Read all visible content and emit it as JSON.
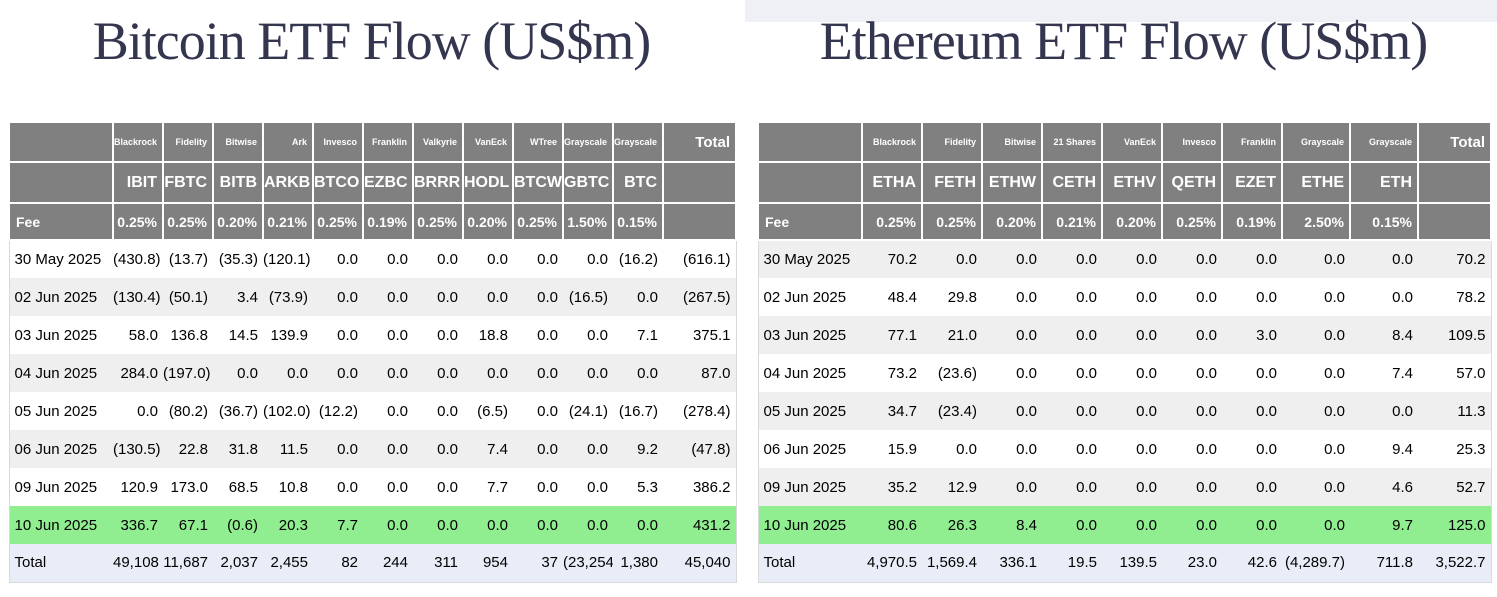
{
  "colors": {
    "header_bg": "#808080",
    "header_text": "#ffffff",
    "negative_text": "#ff0000",
    "highlight_row_bg": "#90ee90",
    "total_row_bg": "#e9edf8",
    "zebra_row_bg": "#efefef",
    "title_text": "#343650"
  },
  "chart_data": [
    {
      "type": "table",
      "title": "Bitcoin ETF Flow (US$m)",
      "fee_row_label": "Fee",
      "total_column_label": "Total",
      "funds": [
        {
          "institution": "Blackrock",
          "ticker": "IBIT",
          "fee": "0.25%"
        },
        {
          "institution": "Fidelity",
          "ticker": "FBTC",
          "fee": "0.25%"
        },
        {
          "institution": "Bitwise",
          "ticker": "BITB",
          "fee": "0.20%"
        },
        {
          "institution": "Ark",
          "ticker": "ARKB",
          "fee": "0.21%"
        },
        {
          "institution": "Invesco",
          "ticker": "BTCO",
          "fee": "0.25%"
        },
        {
          "institution": "Franklin",
          "ticker": "EZBC",
          "fee": "0.19%"
        },
        {
          "institution": "Valkyrie",
          "ticker": "BRRR",
          "fee": "0.25%"
        },
        {
          "institution": "VanEck",
          "ticker": "HODL",
          "fee": "0.20%"
        },
        {
          "institution": "WTree",
          "ticker": "BTCW",
          "fee": "0.25%"
        },
        {
          "institution": "Grayscale",
          "ticker": "GBTC",
          "fee": "1.50%"
        },
        {
          "institution": "Grayscale",
          "ticker": "BTC",
          "fee": "0.15%"
        }
      ],
      "rows": [
        {
          "date": "30 May 2025",
          "values": [
            "(430.8)",
            "(13.7)",
            "(35.3)",
            "(120.1)",
            "0.0",
            "0.0",
            "0.0",
            "0.0",
            "0.0",
            "0.0",
            "(16.2)"
          ],
          "total": "(616.1)",
          "highlight": false
        },
        {
          "date": "02 Jun 2025",
          "values": [
            "(130.4)",
            "(50.1)",
            "3.4",
            "(73.9)",
            "0.0",
            "0.0",
            "0.0",
            "0.0",
            "0.0",
            "(16.5)",
            "0.0"
          ],
          "total": "(267.5)",
          "highlight": false
        },
        {
          "date": "03 Jun 2025",
          "values": [
            "58.0",
            "136.8",
            "14.5",
            "139.9",
            "0.0",
            "0.0",
            "0.0",
            "18.8",
            "0.0",
            "0.0",
            "7.1"
          ],
          "total": "375.1",
          "highlight": false
        },
        {
          "date": "04 Jun 2025",
          "values": [
            "284.0",
            "(197.0)",
            "0.0",
            "0.0",
            "0.0",
            "0.0",
            "0.0",
            "0.0",
            "0.0",
            "0.0",
            "0.0"
          ],
          "total": "87.0",
          "highlight": false
        },
        {
          "date": "05 Jun 2025",
          "values": [
            "0.0",
            "(80.2)",
            "(36.7)",
            "(102.0)",
            "(12.2)",
            "0.0",
            "0.0",
            "(6.5)",
            "0.0",
            "(24.1)",
            "(16.7)"
          ],
          "total": "(278.4)",
          "highlight": false
        },
        {
          "date": "06 Jun 2025",
          "values": [
            "(130.5)",
            "22.8",
            "31.8",
            "11.5",
            "0.0",
            "0.0",
            "0.0",
            "7.4",
            "0.0",
            "0.0",
            "9.2"
          ],
          "total": "(47.8)",
          "highlight": false
        },
        {
          "date": "09 Jun 2025",
          "values": [
            "120.9",
            "173.0",
            "68.5",
            "10.8",
            "0.0",
            "0.0",
            "0.0",
            "7.7",
            "0.0",
            "0.0",
            "5.3"
          ],
          "total": "386.2",
          "highlight": false
        },
        {
          "date": "10 Jun 2025",
          "values": [
            "336.7",
            "67.1",
            "(0.6)",
            "20.3",
            "7.7",
            "0.0",
            "0.0",
            "0.0",
            "0.0",
            "0.0",
            "0.0"
          ],
          "total": "431.2",
          "highlight": true
        }
      ],
      "total_row": {
        "label": "Total",
        "values": [
          "49,108",
          "11,687",
          "2,037",
          "2,455",
          "82",
          "244",
          "311",
          "954",
          "37",
          "(23,254)",
          "1,380"
        ],
        "total": "45,040"
      }
    },
    {
      "type": "table",
      "title": "Ethereum ETF Flow (US$m)",
      "fee_row_label": "Fee",
      "total_column_label": "Total",
      "funds": [
        {
          "institution": "Blackrock",
          "ticker": "ETHA",
          "fee": "0.25%"
        },
        {
          "institution": "Fidelity",
          "ticker": "FETH",
          "fee": "0.25%"
        },
        {
          "institution": "Bitwise",
          "ticker": "ETHW",
          "fee": "0.20%"
        },
        {
          "institution": "21 Shares",
          "ticker": "CETH",
          "fee": "0.21%"
        },
        {
          "institution": "VanEck",
          "ticker": "ETHV",
          "fee": "0.20%"
        },
        {
          "institution": "Invesco",
          "ticker": "QETH",
          "fee": "0.25%"
        },
        {
          "institution": "Franklin",
          "ticker": "EZET",
          "fee": "0.19%"
        },
        {
          "institution": "Grayscale",
          "ticker": "ETHE",
          "fee": "2.50%"
        },
        {
          "institution": "Grayscale",
          "ticker": "ETH",
          "fee": "0.15%"
        }
      ],
      "rows": [
        {
          "date": "30 May 2025",
          "values": [
            "70.2",
            "0.0",
            "0.0",
            "0.0",
            "0.0",
            "0.0",
            "0.0",
            "0.0",
            "0.0"
          ],
          "total": "70.2",
          "highlight": false
        },
        {
          "date": "02 Jun 2025",
          "values": [
            "48.4",
            "29.8",
            "0.0",
            "0.0",
            "0.0",
            "0.0",
            "0.0",
            "0.0",
            "0.0"
          ],
          "total": "78.2",
          "highlight": false
        },
        {
          "date": "03 Jun 2025",
          "values": [
            "77.1",
            "21.0",
            "0.0",
            "0.0",
            "0.0",
            "0.0",
            "3.0",
            "0.0",
            "8.4"
          ],
          "total": "109.5",
          "highlight": false
        },
        {
          "date": "04 Jun 2025",
          "values": [
            "73.2",
            "(23.6)",
            "0.0",
            "0.0",
            "0.0",
            "0.0",
            "0.0",
            "0.0",
            "7.4"
          ],
          "total": "57.0",
          "highlight": false
        },
        {
          "date": "05 Jun 2025",
          "values": [
            "34.7",
            "(23.4)",
            "0.0",
            "0.0",
            "0.0",
            "0.0",
            "0.0",
            "0.0",
            "0.0"
          ],
          "total": "11.3",
          "highlight": false
        },
        {
          "date": "06 Jun 2025",
          "values": [
            "15.9",
            "0.0",
            "0.0",
            "0.0",
            "0.0",
            "0.0",
            "0.0",
            "0.0",
            "9.4"
          ],
          "total": "25.3",
          "highlight": false
        },
        {
          "date": "09 Jun 2025",
          "values": [
            "35.2",
            "12.9",
            "0.0",
            "0.0",
            "0.0",
            "0.0",
            "0.0",
            "0.0",
            "4.6"
          ],
          "total": "52.7",
          "highlight": false
        },
        {
          "date": "10 Jun 2025",
          "values": [
            "80.6",
            "26.3",
            "8.4",
            "0.0",
            "0.0",
            "0.0",
            "0.0",
            "0.0",
            "9.7"
          ],
          "total": "125.0",
          "highlight": true
        }
      ],
      "total_row": {
        "label": "Total",
        "values": [
          "4,970.5",
          "1,569.4",
          "336.1",
          "19.5",
          "139.5",
          "23.0",
          "42.6",
          "(4,289.7)",
          "711.8"
        ],
        "total": "3,522.7"
      }
    }
  ]
}
